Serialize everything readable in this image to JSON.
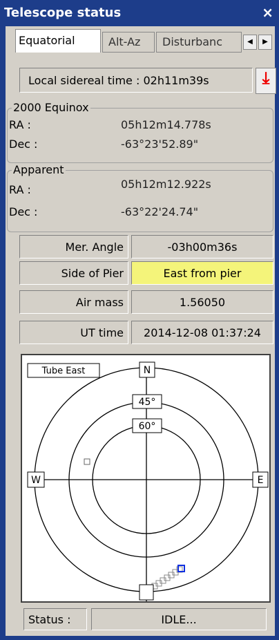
{
  "window": {
    "title": "Telescope status",
    "close": "×"
  },
  "tabs": [
    "Equatorial",
    "Alt-Az",
    "Disturbanc"
  ],
  "sidereal": "Local sidereal time : 02h11m39s",
  "equinox": {
    "title": "2000 Equinox",
    "ra_label": "RA :",
    "ra": "05h12m14.778s",
    "dec_label": "Dec :",
    "dec": "-63°23'52.89\""
  },
  "apparent": {
    "title": "Apparent",
    "ra_label": "RA :",
    "ra": "05h12m12.922s",
    "dec_label": "Dec :",
    "dec": "-63°22'24.74\""
  },
  "rows": [
    [
      "Mer. Angle",
      "-03h00m36s"
    ],
    [
      "Side of Pier",
      "East from pier"
    ],
    [
      "Air mass",
      "1.56050"
    ],
    [
      "UT time",
      "2014-12-08 01:37:24"
    ]
  ],
  "plot": {
    "tube": "Tube East",
    "north": "N",
    "west": "W",
    "east": "E",
    "alt45": "45°",
    "alt60": "60°"
  },
  "status": {
    "label": "Status :",
    "value": "IDLE..."
  }
}
